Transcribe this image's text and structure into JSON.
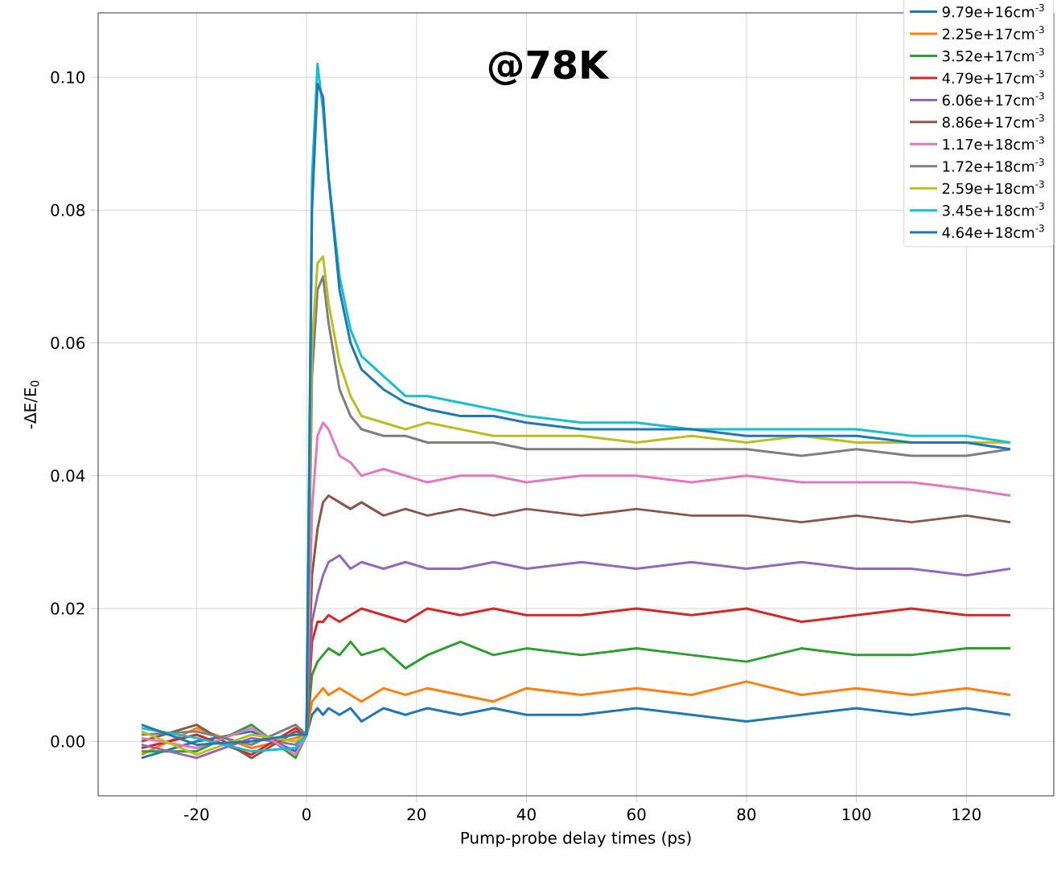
{
  "chart_data": {
    "type": "line",
    "annotations": [
      "@78K"
    ],
    "xlabel": "Pump-probe delay times (ps)",
    "ylabel": "-ΔE/E$_{0}$",
    "x": [
      -30,
      -20,
      -10,
      -2,
      0,
      1,
      2,
      3,
      4,
      6,
      8,
      10,
      14,
      18,
      22,
      28,
      34,
      40,
      50,
      60,
      70,
      80,
      90,
      100,
      110,
      120,
      128
    ],
    "xlim": [
      -37.9,
      135.9
    ],
    "ylim": [
      -0.0082,
      0.1097
    ],
    "xticks": [
      -20,
      0,
      20,
      40,
      60,
      80,
      100,
      120
    ],
    "yticks": [
      {
        "value": 0,
        "label": "0.00"
      },
      {
        "value": 0.02,
        "label": "0.02"
      },
      {
        "value": 0.04,
        "label": "0.04"
      },
      {
        "value": 0.06,
        "label": "0.06"
      },
      {
        "value": 0.08,
        "label": "0.08"
      },
      {
        "value": 0.1,
        "label": "0.10"
      }
    ],
    "grid": true,
    "legend": "top right",
    "series": [
      {
        "name": "9.79e+16cm$^{-3}$",
        "color": "#1f77b4",
        "values": [
          -0.0025,
          0,
          0.0015,
          -0.0015,
          0.001,
          0.004,
          0.005,
          0.004,
          0.005,
          0.004,
          0.005,
          0.003,
          0.005,
          0.004,
          0.005,
          0.004,
          0.005,
          0.004,
          0.004,
          0.005,
          0.004,
          0.003,
          0.004,
          0.005,
          0.004,
          0.005,
          0.004
        ]
      },
      {
        "name": "2.25e+17cm$^{-3}$",
        "color": "#ff7f0e",
        "values": [
          -0.002,
          0.002,
          -0.001,
          0.0005,
          0.001,
          0.006,
          0.007,
          0.008,
          0.007,
          0.008,
          0.007,
          0.006,
          0.008,
          0.007,
          0.008,
          0.007,
          0.006,
          0.008,
          0.007,
          0.008,
          0.007,
          0.009,
          0.007,
          0.008,
          0.007,
          0.008,
          0.007
        ]
      },
      {
        "name": "3.52e+17cm$^{-3}$",
        "color": "#2ca02c",
        "values": [
          -0.0015,
          -0.0015,
          0.0025,
          -0.0025,
          0.001,
          0.01,
          0.012,
          0.013,
          0.014,
          0.013,
          0.015,
          0.013,
          0.014,
          0.011,
          0.013,
          0.015,
          0.013,
          0.014,
          0.013,
          0.014,
          0.013,
          0.012,
          0.014,
          0.013,
          0.013,
          0.014,
          0.014
        ]
      },
      {
        "name": "4.79e+17cm$^{-3}$",
        "color": "#d62728",
        "values": [
          -0.001,
          0.001,
          -0.002,
          0.002,
          0.001,
          0.015,
          0.018,
          0.018,
          0.019,
          0.018,
          0.019,
          0.02,
          0.019,
          0.018,
          0.02,
          0.019,
          0.02,
          0.019,
          0.019,
          0.02,
          0.019,
          0.02,
          0.018,
          0.019,
          0.02,
          0.019,
          0.019
        ]
      },
      {
        "name": "6.06e+17cm$^{-3}$",
        "color": "#9467bd",
        "values": [
          -0.0005,
          -0.0025,
          0.0005,
          -0.0005,
          0.001,
          0.018,
          0.022,
          0.025,
          0.027,
          0.028,
          0.026,
          0.027,
          0.026,
          0.027,
          0.026,
          0.026,
          0.027,
          0.026,
          0.027,
          0.026,
          0.027,
          0.026,
          0.027,
          0.026,
          0.026,
          0.025,
          0.026
        ]
      },
      {
        "name": "8.86e+17cm$^{-3}$",
        "color": "#8c564b",
        "values": [
          0,
          0.0025,
          -0.0025,
          0.0015,
          0.001,
          0.025,
          0.032,
          0.036,
          0.037,
          0.036,
          0.035,
          0.036,
          0.034,
          0.035,
          0.034,
          0.035,
          0.034,
          0.035,
          0.034,
          0.035,
          0.034,
          0.034,
          0.033,
          0.034,
          0.033,
          0.034,
          0.033
        ]
      },
      {
        "name": "1.17e+18cm$^{-3}$",
        "color": "#e377c2",
        "values": [
          0.0005,
          -0.001,
          0.002,
          -0.002,
          0.001,
          0.035,
          0.046,
          0.048,
          0.047,
          0.043,
          0.042,
          0.04,
          0.041,
          0.04,
          0.039,
          0.04,
          0.04,
          0.039,
          0.04,
          0.04,
          0.039,
          0.04,
          0.039,
          0.039,
          0.039,
          0.038,
          0.037
        ]
      },
      {
        "name": "1.72e+18cm$^{-3}$",
        "color": "#7f7f7f",
        "values": [
          0.001,
          0.0015,
          -0.0005,
          0.0025,
          0.001,
          0.055,
          0.068,
          0.07,
          0.063,
          0.053,
          0.049,
          0.047,
          0.046,
          0.046,
          0.045,
          0.045,
          0.045,
          0.044,
          0.044,
          0.044,
          0.044,
          0.044,
          0.043,
          0.044,
          0.043,
          0.043,
          0.044
        ]
      },
      {
        "name": "2.59e+18cm$^{-3}$",
        "color": "#bcbd22",
        "values": [
          0.0015,
          -0.002,
          0.001,
          0,
          0.001,
          0.06,
          0.072,
          0.073,
          0.066,
          0.057,
          0.052,
          0.049,
          0.048,
          0.047,
          0.048,
          0.047,
          0.046,
          0.046,
          0.046,
          0.045,
          0.046,
          0.045,
          0.046,
          0.045,
          0.045,
          0.045,
          0.045
        ]
      },
      {
        "name": "3.45e+18cm$^{-3}$",
        "color": "#17becf",
        "values": [
          0.002,
          0.0005,
          -0.0015,
          -0.001,
          0.001,
          0.085,
          0.102,
          0.095,
          0.085,
          0.07,
          0.062,
          0.058,
          0.055,
          0.052,
          0.052,
          0.051,
          0.05,
          0.049,
          0.048,
          0.048,
          0.047,
          0.047,
          0.047,
          0.047,
          0.046,
          0.046,
          0.045
        ]
      },
      {
        "name": "4.64e+18cm$^{-3}$",
        "color": "#1f77b4",
        "values": [
          0.0025,
          -0.0005,
          0,
          0.001,
          0.001,
          0.08,
          0.099,
          0.097,
          0.085,
          0.068,
          0.06,
          0.056,
          0.053,
          0.051,
          0.05,
          0.049,
          0.049,
          0.048,
          0.047,
          0.047,
          0.047,
          0.046,
          0.046,
          0.046,
          0.045,
          0.045,
          0.044
        ]
      }
    ]
  }
}
